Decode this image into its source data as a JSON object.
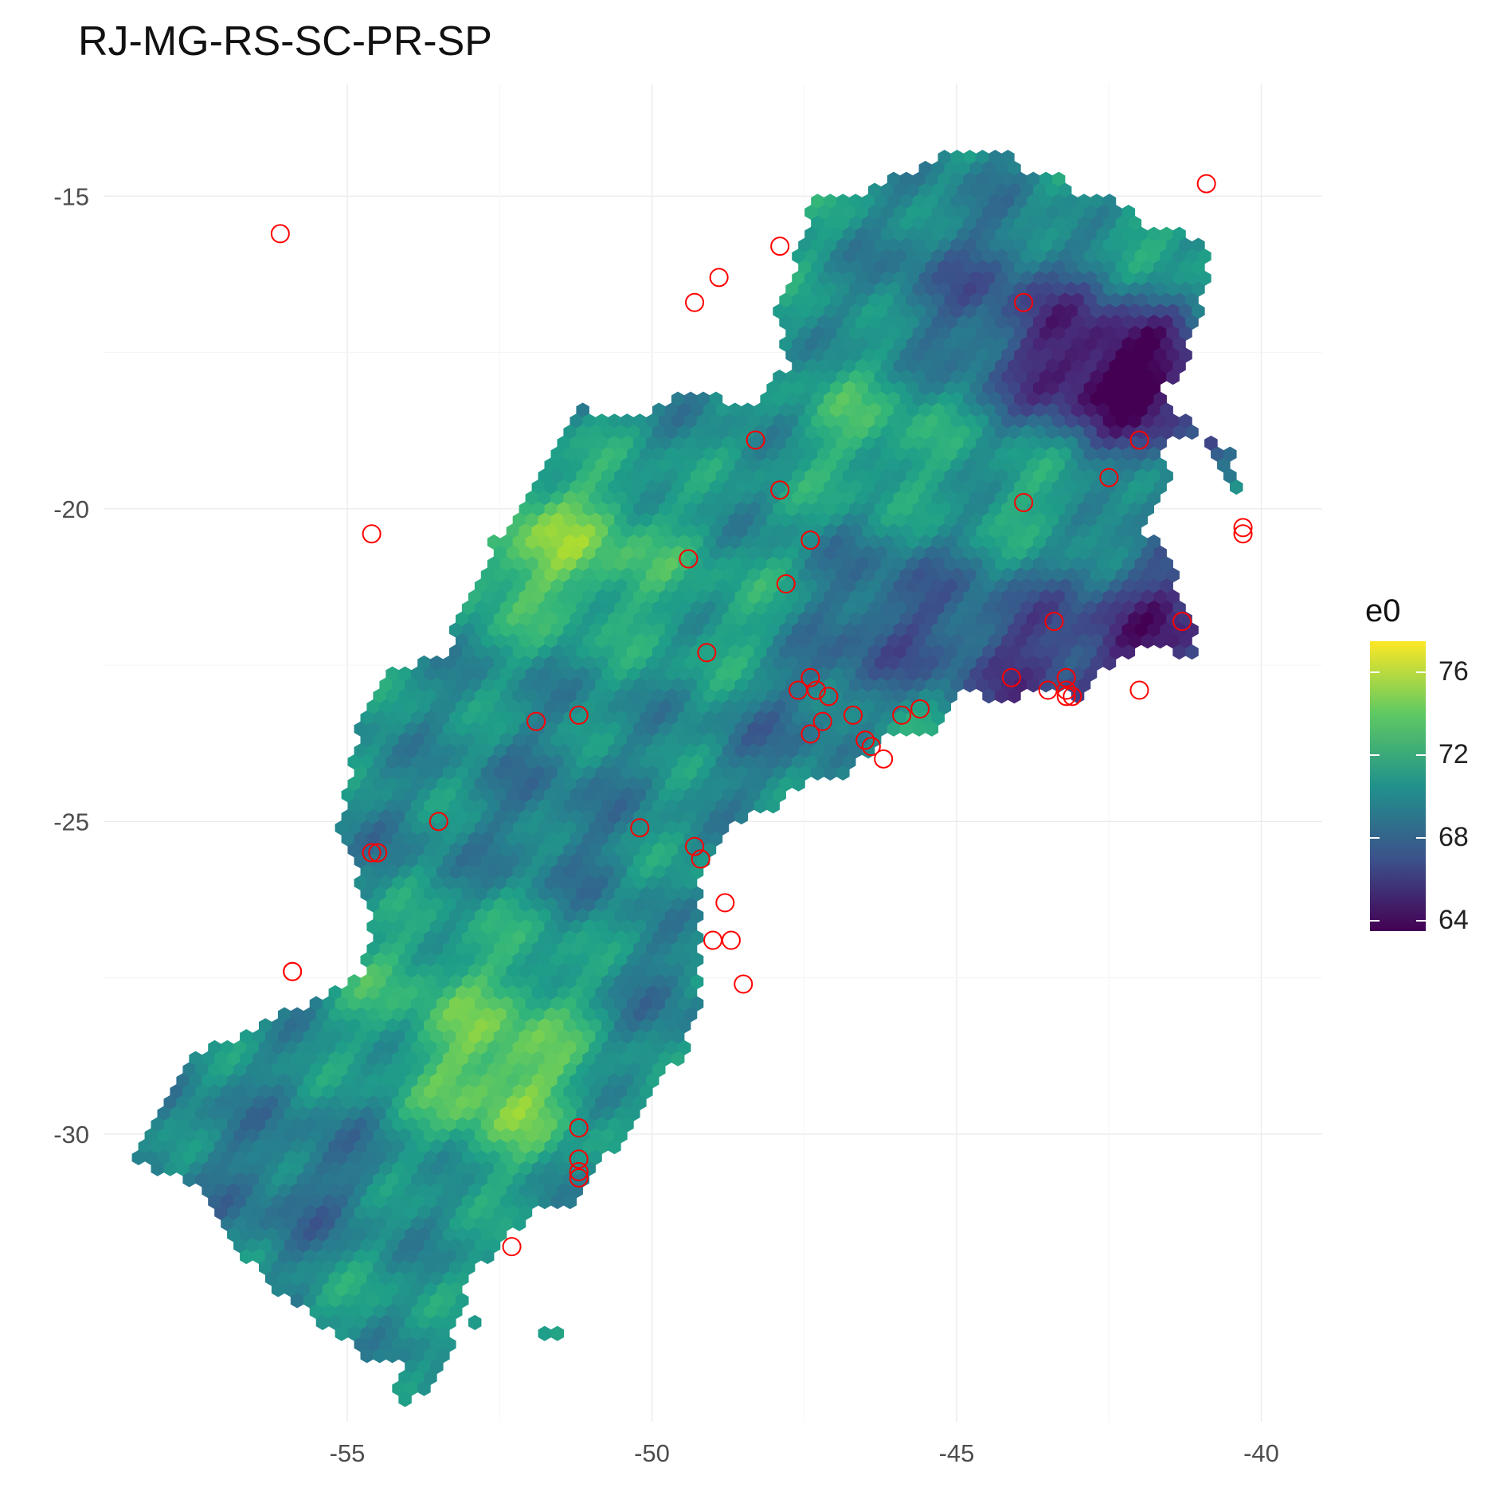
{
  "chart_data": {
    "type": "hexbin-map",
    "title": "RJ-MG-RS-SC-PR-SP",
    "xlabel": "",
    "ylabel": "",
    "xlim": [
      -59,
      -39
    ],
    "ylim": [
      -34.6,
      -13.2
    ],
    "x_ticks": [
      -55,
      -50,
      -45,
      -40
    ],
    "x_tick_labels": [
      "-55",
      "-50",
      "-45",
      "-40"
    ],
    "y_ticks": [
      -15,
      -20,
      -25,
      -30
    ],
    "y_tick_labels": [
      "-15",
      "-20",
      "-25",
      "-30"
    ],
    "grid": true,
    "legend": {
      "title": "e0",
      "position": "right",
      "range": [
        63.5,
        77.5
      ],
      "ticks": [
        64,
        68,
        72,
        76
      ],
      "tick_labels": [
        "64",
        "68",
        "72",
        "76"
      ],
      "palette": "viridis"
    },
    "point_style": {
      "shape": "open-circle",
      "color": "#ff0000"
    },
    "points": [
      {
        "lon": -56.1,
        "lat": -15.6
      },
      {
        "lon": -47.9,
        "lat": -15.8
      },
      {
        "lon": -48.9,
        "lat": -16.3
      },
      {
        "lon": -49.3,
        "lat": -16.7
      },
      {
        "lon": -40.9,
        "lat": -14.8
      },
      {
        "lon": -43.9,
        "lat": -16.7
      },
      {
        "lon": -48.3,
        "lat": -18.9
      },
      {
        "lon": -42.0,
        "lat": -18.9
      },
      {
        "lon": -47.9,
        "lat": -19.7
      },
      {
        "lon": -43.9,
        "lat": -19.9
      },
      {
        "lon": -42.5,
        "lat": -19.5
      },
      {
        "lon": -40.3,
        "lat": -20.3
      },
      {
        "lon": -40.3,
        "lat": -20.4
      },
      {
        "lon": -54.6,
        "lat": -20.4
      },
      {
        "lon": -49.4,
        "lat": -20.8
      },
      {
        "lon": -47.4,
        "lat": -20.5
      },
      {
        "lon": -47.8,
        "lat": -21.2
      },
      {
        "lon": -43.4,
        "lat": -21.8
      },
      {
        "lon": -41.3,
        "lat": -21.8
      },
      {
        "lon": -49.1,
        "lat": -22.3
      },
      {
        "lon": -47.4,
        "lat": -22.7
      },
      {
        "lon": -47.6,
        "lat": -22.9
      },
      {
        "lon": -47.1,
        "lat": -23.0
      },
      {
        "lon": -47.3,
        "lat": -22.9
      },
      {
        "lon": -46.7,
        "lat": -23.3
      },
      {
        "lon": -47.2,
        "lat": -23.4
      },
      {
        "lon": -47.4,
        "lat": -23.6
      },
      {
        "lon": -45.9,
        "lat": -23.3
      },
      {
        "lon": -45.6,
        "lat": -23.2
      },
      {
        "lon": -44.1,
        "lat": -22.7
      },
      {
        "lon": -43.2,
        "lat": -22.7
      },
      {
        "lon": -43.5,
        "lat": -22.9
      },
      {
        "lon": -43.2,
        "lat": -23.0
      },
      {
        "lon": -43.1,
        "lat": -23.0
      },
      {
        "lon": -43.2,
        "lat": -22.9
      },
      {
        "lon": -42.0,
        "lat": -22.9
      },
      {
        "lon": -51.2,
        "lat": -23.3
      },
      {
        "lon": -51.9,
        "lat": -23.4
      },
      {
        "lon": -46.5,
        "lat": -23.7
      },
      {
        "lon": -46.4,
        "lat": -23.8
      },
      {
        "lon": -46.2,
        "lat": -24.0
      },
      {
        "lon": -53.5,
        "lat": -25.0
      },
      {
        "lon": -50.2,
        "lat": -25.1
      },
      {
        "lon": -54.6,
        "lat": -25.5
      },
      {
        "lon": -54.5,
        "lat": -25.5
      },
      {
        "lon": -49.3,
        "lat": -25.4
      },
      {
        "lon": -49.2,
        "lat": -25.6
      },
      {
        "lon": -48.8,
        "lat": -26.3
      },
      {
        "lon": -49.0,
        "lat": -26.9
      },
      {
        "lon": -48.7,
        "lat": -26.9
      },
      {
        "lon": -55.9,
        "lat": -27.4
      },
      {
        "lon": -55.9,
        "lat": -27.4
      },
      {
        "lon": -48.5,
        "lat": -27.6
      },
      {
        "lon": -51.2,
        "lat": -29.9
      },
      {
        "lon": -51.2,
        "lat": -30.4
      },
      {
        "lon": -51.2,
        "lat": -30.6
      },
      {
        "lon": -51.2,
        "lat": -30.7
      },
      {
        "lon": -52.3,
        "lat": -31.8
      }
    ]
  }
}
